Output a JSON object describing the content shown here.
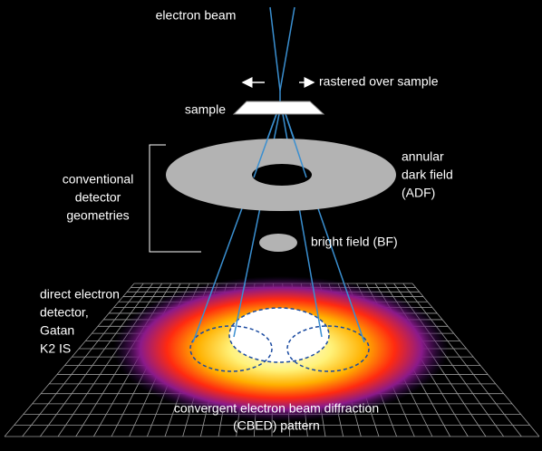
{
  "labels": {
    "electron_beam": "electron beam",
    "rastered": "rastered over sample",
    "sample": "sample",
    "adf": [
      "annular",
      "dark field",
      "(ADF)"
    ],
    "conventional": [
      "conventional",
      "detector",
      "geometries"
    ],
    "bf": "bright field (BF)",
    "direct_detector": [
      "direct electron",
      "detector,",
      "Gatan",
      "K2 IS"
    ],
    "cbed": [
      "convergent electron beam diffraction",
      "(CBED) pattern"
    ]
  }
}
